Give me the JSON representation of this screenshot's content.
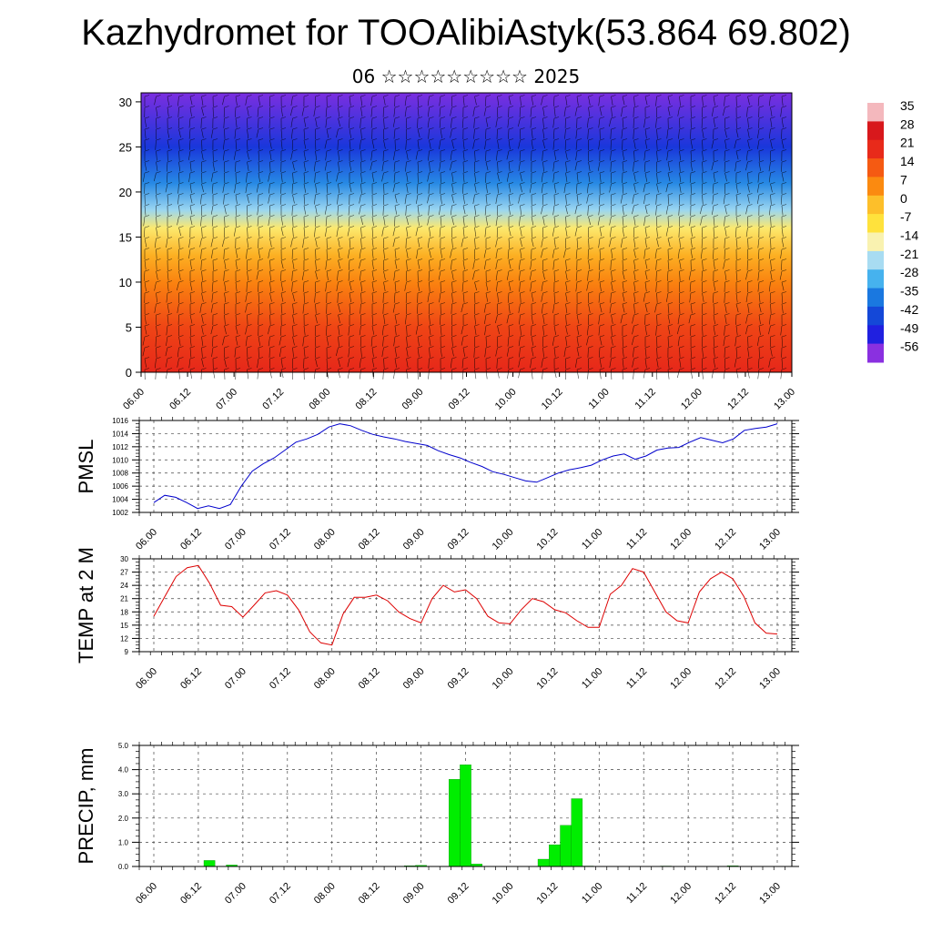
{
  "title": "Kazhydromet for TOOAlibiAstyk(53.864 69.802)",
  "subtitle": "06 ☆☆☆☆☆☆☆☆☆ 2025",
  "chart_data": [
    {
      "type": "heatmap",
      "title": "",
      "xlabel": "",
      "ylabel": "",
      "x_ticks": [
        "06.00",
        "06.12",
        "07.00",
        "07.12",
        "08.00",
        "08.12",
        "09.00",
        "09.12",
        "10.00",
        "10.12",
        "11.00",
        "11.12",
        "12.00",
        "12.12",
        "13.00"
      ],
      "y_ticks": [
        0,
        5,
        10,
        15,
        20,
        25,
        30
      ],
      "ylim": [
        0,
        31
      ],
      "colorbar": {
        "labels": [
          "35",
          "28",
          "21",
          "14",
          "7",
          "0",
          "-7",
          "-14",
          "-21",
          "-28",
          "-35",
          "-42",
          "-49",
          "-56"
        ],
        "colors": [
          "#f4b8bd",
          "#d8181c",
          "#e82a1a",
          "#f55a12",
          "#fb8a10",
          "#fdbf2a",
          "#ffe23c",
          "#f9f2b0",
          "#a8dcf2",
          "#46b2ee",
          "#1a78e0",
          "#1448d8",
          "#2020e0",
          "#8a30e0"
        ]
      },
      "temperature_profile": [
        {
          "z": 0,
          "t": 22
        },
        {
          "z": 5,
          "t": 17
        },
        {
          "z": 10,
          "t": 8
        },
        {
          "z": 13,
          "t": 2
        },
        {
          "z": 16,
          "t": -10
        },
        {
          "z": 18,
          "t": -22
        },
        {
          "z": 21,
          "t": -33
        },
        {
          "z": 25,
          "t": -45
        },
        {
          "z": 31,
          "t": -55
        }
      ],
      "overlay": "wind barbs"
    },
    {
      "type": "line",
      "ylabel": "PMSL",
      "x_ticks": [
        "06.00",
        "06.12",
        "07.00",
        "07.12",
        "08.00",
        "08.12",
        "09.00",
        "09.12",
        "10.00",
        "10.12",
        "11.00",
        "11.12",
        "12.00",
        "12.12",
        "13.00"
      ],
      "y_ticks": [
        "1002",
        "1004",
        "1006",
        "1008",
        "1010",
        "1012",
        "1014",
        "1016"
      ],
      "ylim": [
        1002,
        1016
      ],
      "grid": true,
      "series": [
        {
          "color": "#0000cc",
          "values": [
            1003.5,
            1004.6,
            1004.3,
            1003.5,
            1002.6,
            1003.0,
            1002.6,
            1003.2,
            1006.0,
            1008.3,
            1009.4,
            1010.3,
            1011.5,
            1012.7,
            1013.2,
            1013.9,
            1015.0,
            1015.5,
            1015.2,
            1014.5,
            1013.9,
            1013.5,
            1013.2,
            1012.8,
            1012.5,
            1012.2,
            1011.4,
            1010.8,
            1010.3,
            1009.6,
            1009.0,
            1008.2,
            1007.8,
            1007.3,
            1006.8,
            1006.6,
            1007.3,
            1008.0,
            1008.5,
            1008.8,
            1009.2,
            1010.0,
            1010.6,
            1010.9,
            1010.1,
            1010.6,
            1011.5,
            1011.8,
            1011.9,
            1012.7,
            1013.4,
            1013.0,
            1012.6,
            1013.2,
            1014.5,
            1014.8,
            1015.0,
            1015.5
          ]
        }
      ]
    },
    {
      "type": "line",
      "ylabel": "TEMP at 2 M",
      "x_ticks": [
        "06.00",
        "06.12",
        "07.00",
        "07.12",
        "08.00",
        "08.12",
        "09.00",
        "09.12",
        "10.00",
        "10.12",
        "11.00",
        "11.12",
        "12.00",
        "12.12",
        "13.00"
      ],
      "y_ticks": [
        "9",
        "12",
        "15",
        "18",
        "21",
        "24",
        "27",
        "30"
      ],
      "ylim": [
        9,
        30
      ],
      "grid": true,
      "series": [
        {
          "color": "#dd0000",
          "values": [
            17.0,
            21.5,
            26.0,
            28.0,
            28.5,
            24.5,
            19.5,
            19.2,
            16.8,
            19.5,
            22.3,
            22.8,
            21.8,
            18.5,
            13.5,
            11.0,
            10.5,
            17.5,
            21.3,
            21.3,
            21.8,
            20.5,
            18.0,
            16.5,
            15.5,
            21.0,
            24.0,
            22.5,
            23.0,
            21.0,
            17.0,
            15.5,
            15.3,
            18.5,
            21.0,
            20.3,
            18.5,
            17.8,
            16.0,
            14.5,
            14.5,
            22.0,
            24.0,
            27.8,
            27.0,
            22.5,
            18.0,
            16.0,
            15.5,
            22.5,
            25.5,
            27.0,
            25.5,
            21.5,
            15.5,
            13.2,
            13.0
          ]
        }
      ]
    },
    {
      "type": "bar",
      "ylabel": "PRECIP, mm",
      "x_ticks": [
        "06.00",
        "06.12",
        "07.00",
        "07.12",
        "08.00",
        "08.12",
        "09.00",
        "09.12",
        "10.00",
        "10.12",
        "11.00",
        "11.12",
        "12.00",
        "12.12",
        "13.00"
      ],
      "y_ticks": [
        "0.0",
        "1.0",
        "2.0",
        "3.0",
        "4.0",
        "5.0"
      ],
      "ylim": [
        0,
        5
      ],
      "grid": true,
      "series": [
        {
          "color": "#00ee00",
          "values": [
            0,
            0,
            0,
            0,
            0,
            0.25,
            0,
            0.06,
            0,
            0,
            0,
            0,
            0,
            0,
            0,
            0,
            0,
            0,
            0,
            0,
            0,
            0,
            0,
            0.03,
            0.05,
            0,
            0,
            3.6,
            4.2,
            0.1,
            0,
            0,
            0,
            0,
            0,
            0.3,
            0.9,
            1.7,
            2.8,
            0.02,
            0,
            0,
            0,
            0,
            0,
            0,
            0.02,
            0,
            0,
            0,
            0,
            0,
            0.03,
            0,
            0,
            0,
            0
          ]
        }
      ]
    }
  ]
}
